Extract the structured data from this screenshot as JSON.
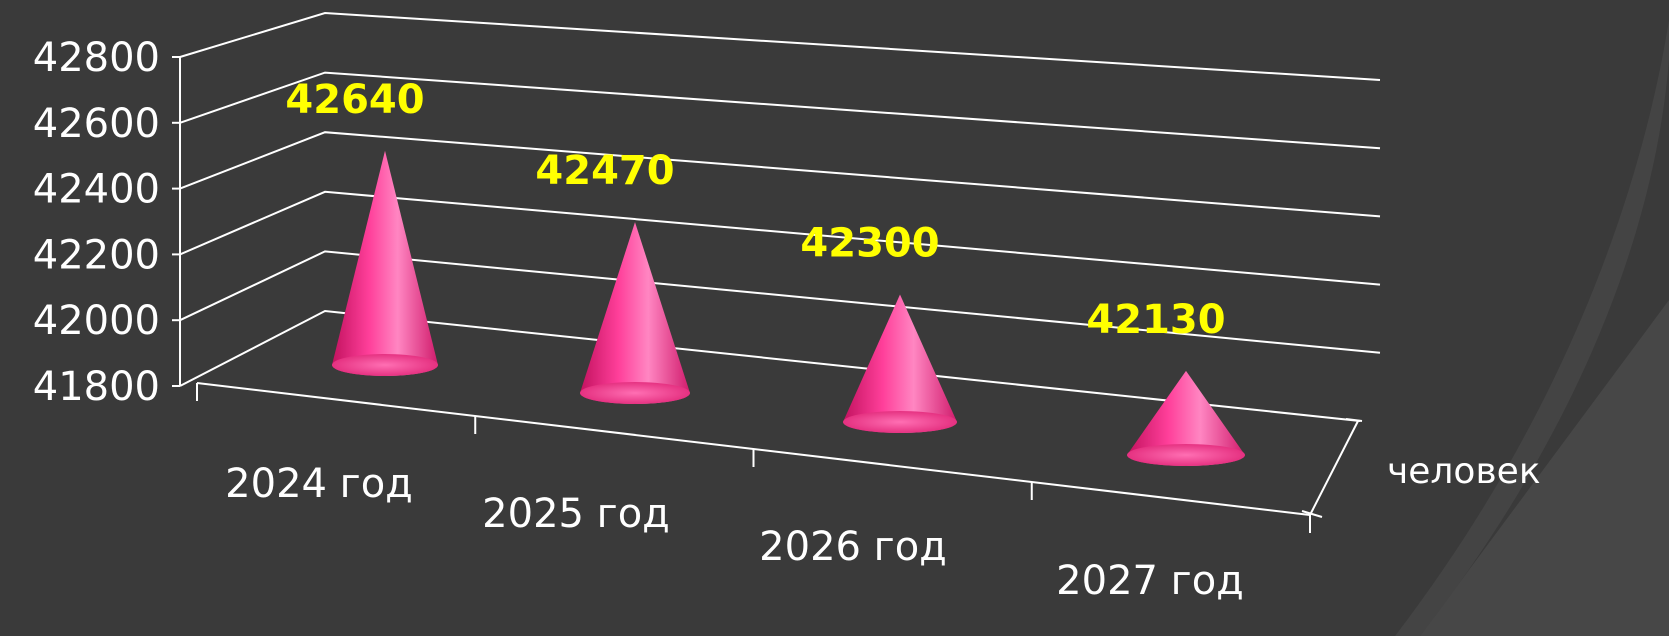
{
  "chart_data": {
    "type": "bar",
    "subtype": "3d-cone",
    "categories": [
      "2024 год",
      "2025 год",
      "2026 год",
      "2027 год"
    ],
    "series": [
      {
        "name": "человек",
        "values": [
          42640,
          42470,
          42300,
          42130
        ]
      }
    ],
    "data_labels": [
      "42640",
      "42470",
      "42300",
      "42130"
    ],
    "y_ticks": [
      "42800",
      "42600",
      "42400",
      "42200",
      "42000",
      "41800"
    ],
    "ylim": [
      41800,
      42800
    ],
    "grid": true,
    "colors": {
      "background": "#3a3a3a",
      "cone": "#ff3399",
      "data_label": "#ffff00",
      "text": "#ffffff",
      "lines": "#ffffff"
    }
  }
}
